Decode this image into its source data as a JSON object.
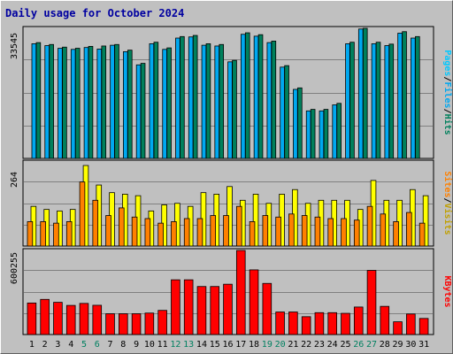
{
  "chart_data": [
    {
      "type": "bar",
      "title": "Daily usage for October 2024",
      "ylabel_parts": [
        "Pages",
        "/",
        "Files",
        "/",
        "Hits"
      ],
      "ymax_label": "33545",
      "ymax": 33545,
      "x": [
        "1",
        "2",
        "3",
        "4",
        "5",
        "6",
        "7",
        "8",
        "9",
        "10",
        "11",
        "12",
        "13",
        "14",
        "15",
        "16",
        "17",
        "18",
        "19",
        "20",
        "21",
        "22",
        "23",
        "24",
        "25",
        "26",
        "27",
        "28",
        "29",
        "30",
        "31"
      ],
      "series": [
        {
          "name": "Hits",
          "color": "#00805c",
          "values": [
            30700,
            30200,
            29500,
            29200,
            29700,
            29800,
            30200,
            28700,
            25200,
            30800,
            29300,
            32300,
            32600,
            30400,
            30200,
            26000,
            33300,
            32800,
            31100,
            24600,
            18700,
            13000,
            13000,
            14600,
            30800,
            34700,
            30800,
            30300,
            33600,
            32300,
            0
          ]
        },
        {
          "name": "Files",
          "color": "#00a8f0",
          "values": [
            30400,
            29900,
            29200,
            28900,
            29400,
            29000,
            30000,
            28300,
            24800,
            30400,
            28900,
            31900,
            32200,
            30000,
            29800,
            25600,
            32900,
            32400,
            30700,
            24200,
            18300,
            12600,
            12600,
            14200,
            30400,
            34300,
            30400,
            29900,
            33200,
            31900,
            0
          ]
        },
        {
          "name": "Pages",
          "color": "#00c8ff",
          "values": [
            0,
            0,
            0,
            0,
            0,
            0,
            0,
            0,
            0,
            0,
            0,
            0,
            0,
            0,
            0,
            0,
            0,
            0,
            0,
            0,
            0,
            0,
            0,
            0,
            0,
            0,
            0,
            0,
            0,
            0,
            0
          ]
        }
      ]
    },
    {
      "type": "bar",
      "ylabel_parts": [
        "Sites",
        "/",
        "Visits"
      ],
      "ymax_label": "264",
      "ymax": 264,
      "x": [
        "1",
        "2",
        "3",
        "4",
        "5",
        "6",
        "7",
        "8",
        "9",
        "10",
        "11",
        "12",
        "13",
        "14",
        "15",
        "16",
        "17",
        "18",
        "19",
        "20",
        "21",
        "22",
        "23",
        "24",
        "25",
        "26",
        "27",
        "28",
        "29",
        "30",
        "31"
      ],
      "series": [
        {
          "name": "Visits",
          "color": "#ffff00",
          "values": [
            130,
            120,
            115,
            120,
            264,
            200,
            175,
            170,
            165,
            115,
            135,
            140,
            130,
            175,
            170,
            195,
            150,
            170,
            140,
            170,
            185,
            140,
            150,
            150,
            150,
            120,
            215,
            150,
            150,
            185,
            165
          ]
        },
        {
          "name": "Sites",
          "color": "#ff8000",
          "values": [
            80,
            80,
            75,
            80,
            210,
            150,
            100,
            125,
            95,
            90,
            75,
            80,
            90,
            90,
            100,
            100,
            130,
            80,
            100,
            95,
            105,
            100,
            95,
            90,
            90,
            85,
            130,
            105,
            80,
            110,
            75
          ]
        }
      ]
    },
    {
      "type": "bar",
      "ylabel_parts": [
        "KBytes"
      ],
      "ymax_label": "600255",
      "ymax": 600255,
      "x": [
        "1",
        "2",
        "3",
        "4",
        "5",
        "6",
        "7",
        "8",
        "9",
        "10",
        "11",
        "12",
        "13",
        "14",
        "15",
        "16",
        "17",
        "18",
        "19",
        "20",
        "21",
        "22",
        "23",
        "24",
        "25",
        "26",
        "27",
        "28",
        "29",
        "30",
        "31"
      ],
      "weekend_color": "#008060",
      "weekend_days": [
        "5",
        "6",
        "12",
        "13",
        "19",
        "20",
        "26",
        "27"
      ],
      "series": [
        {
          "name": "KBytes",
          "color": "#ff0000",
          "values": [
            235000,
            262000,
            240000,
            217000,
            232000,
            218000,
            155000,
            155000,
            155000,
            160000,
            180000,
            408000,
            408000,
            358000,
            358000,
            375000,
            630000,
            482000,
            381000,
            168000,
            168000,
            133000,
            163000,
            163000,
            158000,
            205000,
            478000,
            210000,
            95000,
            153000,
            120000
          ]
        }
      ]
    }
  ]
}
